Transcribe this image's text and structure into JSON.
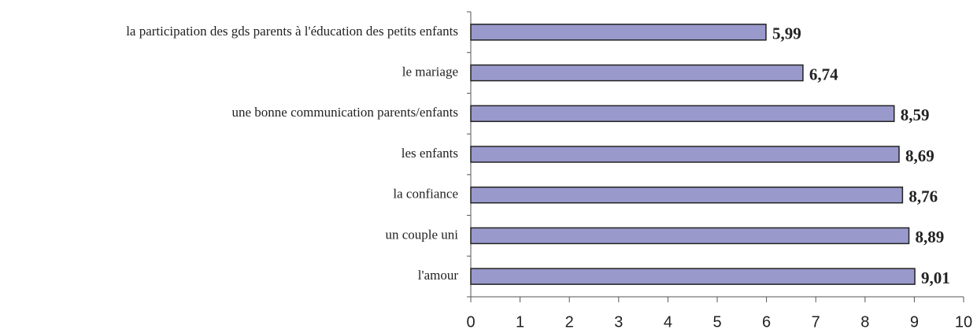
{
  "chart_data": {
    "type": "bar",
    "orientation": "horizontal",
    "categories": [
      "la participation des gds parents à l'éducation des petits enfants",
      "le mariage",
      "une bonne communication parents/enfants",
      "les enfants",
      "la confiance",
      "un couple uni",
      "l'amour"
    ],
    "values": [
      5.99,
      6.74,
      8.59,
      8.69,
      8.76,
      8.89,
      9.01
    ],
    "value_labels": [
      "5,99",
      "6,74",
      "8,59",
      "8,69",
      "8,76",
      "8,89",
      "9,01"
    ],
    "color": "#9999cc",
    "xlim": [
      0,
      10
    ],
    "xticks": [
      0,
      1,
      2,
      3,
      4,
      5,
      6,
      7,
      8,
      9,
      10
    ]
  }
}
